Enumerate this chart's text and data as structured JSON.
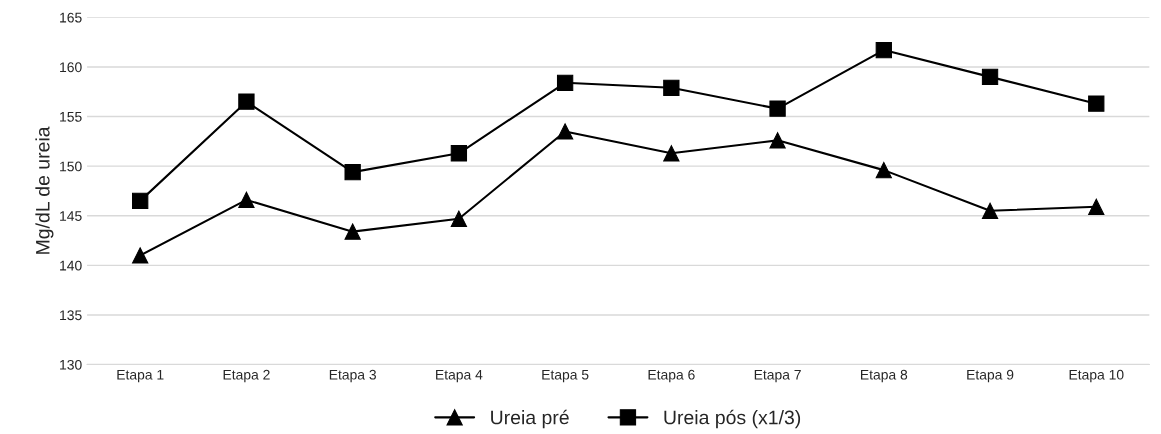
{
  "chart_data": {
    "type": "line",
    "ylabel": "Mg/dL de ureia",
    "categories": [
      "Etapa 1",
      "Etapa 2",
      "Etapa 3",
      "Etapa 4",
      "Etapa 5",
      "Etapa 6",
      "Etapa 7",
      "Etapa 8",
      "Etapa 9",
      "Etapa 10"
    ],
    "series": [
      {
        "name": "Ureia pré",
        "color": "#000000",
        "marker": "triangle",
        "values": [
          141.0,
          146.6,
          143.4,
          144.7,
          153.5,
          151.3,
          152.6,
          149.6,
          145.5,
          145.9
        ]
      },
      {
        "name": "Ureia pós (x1/3)",
        "color": "#000000",
        "marker": "square",
        "values": [
          146.5,
          156.5,
          149.4,
          151.3,
          158.4,
          157.9,
          155.8,
          161.7,
          159.0,
          156.3
        ]
      }
    ],
    "ylim": [
      130,
      165
    ],
    "yticks": [
      130,
      135,
      140,
      145,
      150,
      155,
      160,
      165
    ],
    "grid": "y",
    "legend": "bottom",
    "line_style": "solid"
  }
}
